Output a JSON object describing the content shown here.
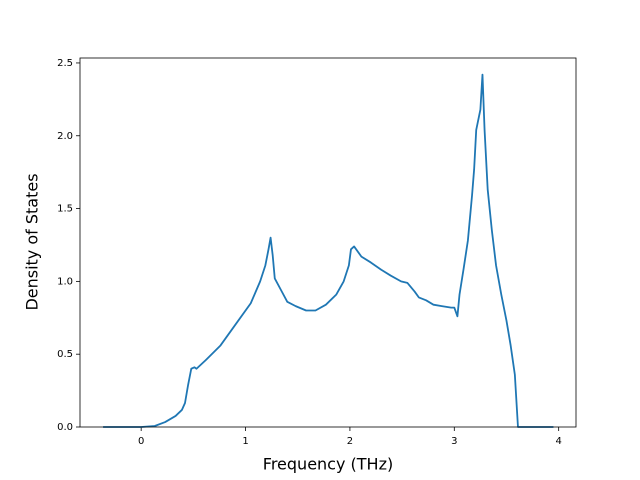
{
  "chart_data": {
    "type": "line",
    "xlabel": "Frequency (THz)",
    "ylabel": "Density of States",
    "x": [
      -0.365,
      0,
      0.13,
      0.23,
      0.33,
      0.39,
      0.42,
      0.45,
      0.48,
      0.51,
      0.53,
      0.62,
      0.76,
      0.9,
      1.05,
      1.14,
      1.19,
      1.22,
      1.24,
      1.26,
      1.28,
      1.34,
      1.4,
      1.48,
      1.58,
      1.67,
      1.77,
      1.87,
      1.94,
      1.99,
      2.01,
      2.04,
      2.11,
      2.2,
      2.3,
      2.39,
      2.49,
      2.55,
      2.62,
      2.66,
      2.73,
      2.8,
      2.88,
      2.97,
      3.0,
      3.03,
      3.05,
      3.09,
      3.13,
      3.17,
      3.19,
      3.21,
      3.25,
      3.27,
      3.29,
      3.32,
      3.36,
      3.4,
      3.45,
      3.5,
      3.54,
      3.58,
      3.61,
      3.95
    ],
    "values": [
      0,
      0,
      0.007,
      0.034,
      0.076,
      0.117,
      0.165,
      0.29,
      0.4,
      0.41,
      0.4,
      0.46,
      0.56,
      0.7,
      0.85,
      1.0,
      1.11,
      1.22,
      1.3,
      1.18,
      1.02,
      0.94,
      0.86,
      0.83,
      0.8,
      0.8,
      0.84,
      0.91,
      1.0,
      1.11,
      1.22,
      1.24,
      1.17,
      1.13,
      1.08,
      1.04,
      1.0,
      0.99,
      0.93,
      0.89,
      0.87,
      0.84,
      0.83,
      0.82,
      0.82,
      0.76,
      0.91,
      1.09,
      1.28,
      1.59,
      1.77,
      2.04,
      2.18,
      2.42,
      2.04,
      1.63,
      1.35,
      1.11,
      0.91,
      0.73,
      0.56,
      0.36,
      0,
      0
    ],
    "color": "#1f77b4",
    "xlim": [
      -0.586,
      4.166
    ],
    "xticks": [
      0,
      1,
      2,
      3,
      4
    ],
    "ylim": [
      0,
      2.534
    ],
    "yticks": [
      {
        "value": 0,
        "label": "0.0"
      },
      0.5,
      {
        "value": 1,
        "label": "1.0"
      },
      1.5,
      {
        "value": 2,
        "label": "2.0"
      },
      2.5
    ]
  }
}
